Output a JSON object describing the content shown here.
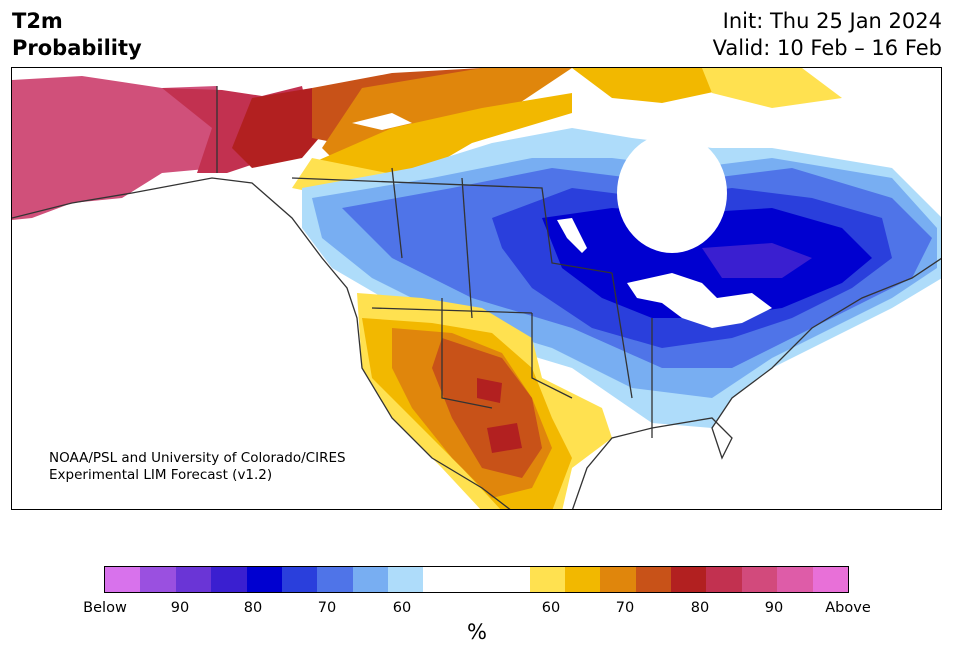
{
  "header": {
    "variable": "T2m",
    "product": "Probability",
    "init": "Init: Thu 25 Jan 2024",
    "valid": "Valid: 10 Feb – 16 Feb"
  },
  "credit": {
    "line1": "NOAA/PSL and University of Colorado/CIRES",
    "line2": "Experimental LIM Forecast (v1.2)"
  },
  "colorbar": {
    "unit": "%",
    "ticks": [
      "Below",
      "90",
      "80",
      "70",
      "60",
      "60",
      "70",
      "80",
      "90",
      "Above"
    ],
    "below_colors": [
      "#d872ec",
      "#9a50e0",
      "#6a35d6",
      "#3a1fd0",
      "#0000d0",
      "#2a3fdc",
      "#4f74e8",
      "#78aef2",
      "#aedcfa"
    ],
    "neutral_color": "#ffffff",
    "above_colors": [
      "#ffe150",
      "#f2b800",
      "#e0860c",
      "#c85218",
      "#b22020",
      "#c23150",
      "#d24a7c",
      "#de5ca8",
      "#e870d8"
    ]
  },
  "legend_classes": {
    "cold_strong": "#0000d0",
    "cold_moderate": "#4f74e8",
    "cold_light": "#aedcfa",
    "warm_light": "#ffe150",
    "warm_moderate": "#e0860c",
    "warm_strong": "#b22020",
    "warm_extreme": "#d24a7c"
  }
}
